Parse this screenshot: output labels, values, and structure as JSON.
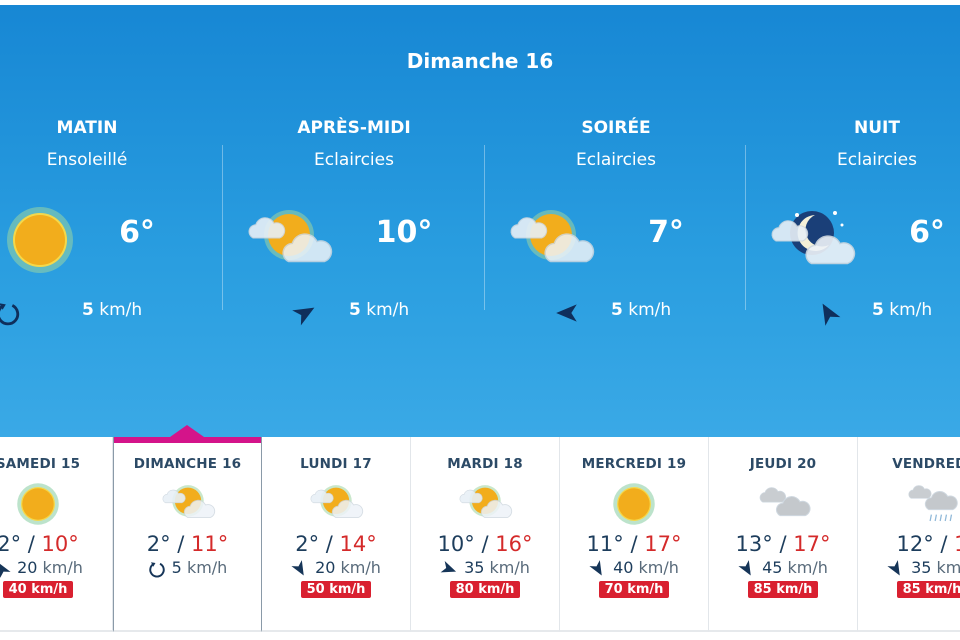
{
  "selected_day": "Dimanche 16",
  "periods": [
    {
      "name": "MATIN",
      "desc": "Ensoleillé",
      "icon": "sun-icon",
      "temp": "6°",
      "wind_icon": "variable-wind-icon",
      "wind_speed": "5",
      "wind_unit": "km/h"
    },
    {
      "name": "APRÈS-MIDI",
      "desc": "Eclaircies",
      "icon": "sun-cloud-icon",
      "temp": "10°",
      "wind_icon": "wind-arrow-icon",
      "wind_dir": 60,
      "wind_speed": "5",
      "wind_unit": "km/h"
    },
    {
      "name": "SOIRÉE",
      "desc": "Eclaircies",
      "icon": "sun-cloud-icon",
      "temp": "7°",
      "wind_icon": "wind-arrow-icon",
      "wind_dir": -90,
      "wind_speed": "5",
      "wind_unit": "km/h"
    },
    {
      "name": "NUIT",
      "desc": "Eclaircies",
      "icon": "moon-cloud-icon",
      "temp": "6°",
      "wind_icon": "wind-arrow-icon",
      "wind_dir": -30,
      "wind_speed": "5",
      "wind_unit": "km/h"
    }
  ],
  "days": [
    {
      "name": "SAMEDI 15",
      "icon": "sun-icon",
      "min": "2°",
      "max": "10°",
      "wind_icon": "wind-arrow-icon",
      "wind_dir": -30,
      "wind": "20",
      "unit": "km/h",
      "gust": "40 km/h"
    },
    {
      "name": "DIMANCHE 16",
      "icon": "sun-cloud-icon",
      "min": "2°",
      "max": "11°",
      "wind_icon": "variable-wind-icon",
      "wind": "5",
      "unit": "km/h",
      "gust": "",
      "selected": true
    },
    {
      "name": "LUNDI 17",
      "icon": "sun-cloud-icon",
      "min": "2°",
      "max": "14°",
      "wind_icon": "wind-arrow-icon",
      "wind_dir": 150,
      "wind": "20",
      "unit": "km/h",
      "gust": "50 km/h"
    },
    {
      "name": "MARDI 18",
      "icon": "sun-cloud-icon",
      "min": "10°",
      "max": "16°",
      "wind_icon": "wind-arrow-icon",
      "wind_dir": 110,
      "wind": "35",
      "unit": "km/h",
      "gust": "80 km/h"
    },
    {
      "name": "MERCREDI 19",
      "icon": "sun-icon",
      "min": "11°",
      "max": "17°",
      "wind_icon": "wind-arrow-icon",
      "wind_dir": 150,
      "wind": "40",
      "unit": "km/h",
      "gust": "70 km/h"
    },
    {
      "name": "JEUDI 20",
      "icon": "cloud-icon",
      "min": "13°",
      "max": "17°",
      "wind_icon": "wind-arrow-icon",
      "wind_dir": 150,
      "wind": "45",
      "unit": "km/h",
      "gust": "85 km/h"
    },
    {
      "name": "VENDREDI",
      "icon": "rain-icon",
      "min": "12°",
      "max": "1",
      "wind_icon": "wind-arrow-icon",
      "wind_dir": 150,
      "wind": "35",
      "unit": "km/h",
      "gust": "85 km/h"
    }
  ],
  "colors": {
    "max_temp": "#d42a2a",
    "gust_badge": "#d92030",
    "selected_accent": "#d4148a",
    "hero_blue": "#1787d4"
  }
}
